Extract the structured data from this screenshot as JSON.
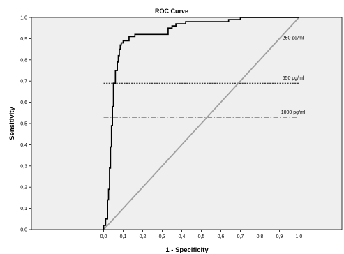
{
  "chart_data": {
    "type": "line",
    "title": "ROC Curve",
    "xlabel": "1 - Specificity",
    "ylabel": "Sensitivity",
    "xlim": [
      -0.37,
      1.22
    ],
    "ylim": [
      0,
      1
    ],
    "x_ticks": [
      "0,0",
      "0,1",
      "0,2",
      "0,3",
      "0,4",
      "0,5",
      "0,6",
      "0,7",
      "0,8",
      "0,9",
      "1,0"
    ],
    "y_ticks": [
      "0,0",
      "0,1",
      "0,2",
      "0,3",
      "0,4",
      "0,5",
      "0,6",
      "0,7",
      "0,8",
      "0,9",
      "1,0"
    ],
    "grid": false,
    "background": "#efefef",
    "roc_curve": {
      "x": [
        0.0,
        0.0,
        0.01,
        0.01,
        0.02,
        0.02,
        0.025,
        0.025,
        0.03,
        0.03,
        0.035,
        0.035,
        0.04,
        0.04,
        0.045,
        0.045,
        0.05,
        0.05,
        0.06,
        0.06,
        0.07,
        0.07,
        0.075,
        0.075,
        0.08,
        0.08,
        0.085,
        0.085,
        0.09,
        0.09,
        0.1,
        0.1,
        0.13,
        0.13,
        0.16,
        0.16,
        0.33,
        0.33,
        0.35,
        0.35,
        0.37,
        0.37,
        0.42,
        0.42,
        0.64,
        0.64,
        0.7,
        0.7,
        1.0
      ],
      "y": [
        0.0,
        0.02,
        0.02,
        0.05,
        0.05,
        0.14,
        0.14,
        0.19,
        0.19,
        0.29,
        0.29,
        0.39,
        0.39,
        0.49,
        0.49,
        0.58,
        0.58,
        0.69,
        0.69,
        0.75,
        0.75,
        0.79,
        0.79,
        0.82,
        0.82,
        0.85,
        0.85,
        0.87,
        0.87,
        0.88,
        0.88,
        0.89,
        0.89,
        0.91,
        0.91,
        0.92,
        0.92,
        0.95,
        0.95,
        0.96,
        0.96,
        0.97,
        0.97,
        0.98,
        0.98,
        0.99,
        0.99,
        1.0,
        1.0
      ],
      "color": "#000000"
    },
    "reference_line": {
      "x": [
        0,
        1
      ],
      "y": [
        0,
        1
      ],
      "color": "#a0a0a0"
    },
    "cutoffs": [
      {
        "label": "250 pg/ml",
        "y": 0.88,
        "x_start": 0.0,
        "x_end": 1.0,
        "style": "solid"
      },
      {
        "label": "650 pg/ml",
        "y": 0.69,
        "x_start": 0.0,
        "x_end": 1.0,
        "style": "dashed"
      },
      {
        "label": "1000 pg/ml",
        "y": 0.53,
        "x_start": 0.0,
        "x_end": 1.0,
        "style": "dash-dot"
      }
    ]
  }
}
